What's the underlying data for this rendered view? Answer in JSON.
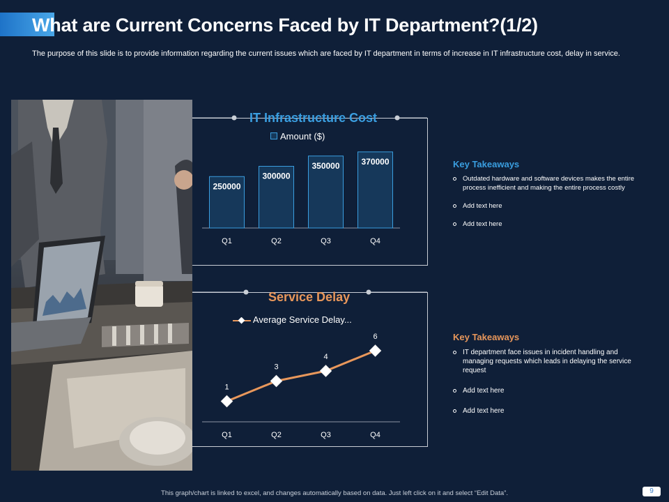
{
  "slide": {
    "title": "What are Current Concerns Faced by IT Department?(1/2)",
    "subtitle": "The purpose of this slide is to provide information regarding the current issues which are faced by IT department in terms of increase in IT infrastructure cost, delay in service.",
    "footer": "This graph/chart is linked to excel, and changes automatically based on data. Just left click on it and select “Edit Data”.",
    "page_number": "9"
  },
  "colors": {
    "background": "#0f1f38",
    "blue_accent": "#3a9ee0",
    "orange_accent": "#e8975b",
    "bar_fill": "#16385a",
    "bar_stroke": "#3a9ee0",
    "line": "#e8975b"
  },
  "panel1": {
    "title": "IT Infrastructure  Cost",
    "legend": "Amount ($)",
    "takeaways_title": "Key Takeaways",
    "takeaways": [
      "Outdated hardware and software devices makes the entire process inefficient and making the entire process costly",
      "Add text here",
      "Add text here"
    ]
  },
  "panel2": {
    "title": "Service Delay",
    "legend": "Average Service Delay...",
    "takeaways_title": "Key Takeaways",
    "takeaways": [
      "IT department face issues in incident handling and managing requests which leads in delaying the service request",
      "Add text here",
      "Add text here"
    ]
  },
  "chart_data": [
    {
      "type": "bar",
      "title": "IT Infrastructure  Cost",
      "categories": [
        "Q1",
        "Q2",
        "Q3",
        "Q4"
      ],
      "series": [
        {
          "name": "Amount ($)",
          "values": [
            250000,
            300000,
            350000,
            370000
          ]
        }
      ],
      "ylim": [
        0,
        400000
      ],
      "grid": false,
      "legend": "top"
    },
    {
      "type": "line",
      "title": "Service Delay",
      "categories": [
        "Q1",
        "Q2",
        "Q3",
        "Q4"
      ],
      "series": [
        {
          "name": "Average Service Delay...",
          "values": [
            1,
            3,
            4,
            6
          ]
        }
      ],
      "ylim": [
        0,
        6
      ],
      "grid": false,
      "legend": "top"
    }
  ]
}
